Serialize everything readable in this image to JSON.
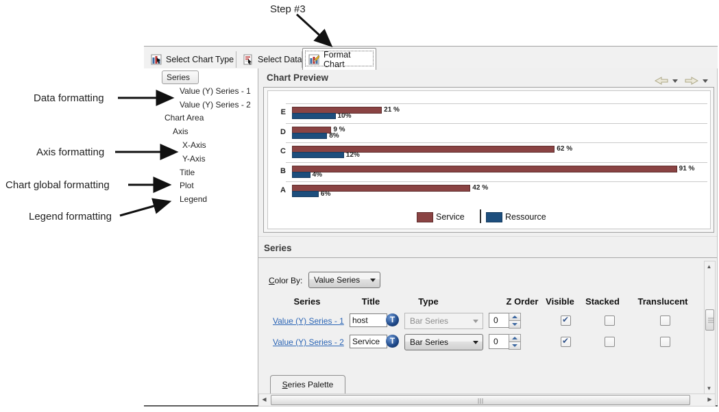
{
  "annotations": {
    "step_label": "Step #3",
    "data_formatting": "Data formatting",
    "axis_formatting": "Axis formatting",
    "chart_global_formatting": "Chart global formatting",
    "legend_formatting": "Legend formatting"
  },
  "tabs": [
    {
      "label": "Select Chart Type",
      "active": false
    },
    {
      "label": "Select Data",
      "active": false
    },
    {
      "label": "Format Chart",
      "active": true
    }
  ],
  "tree": {
    "selected": "Series",
    "items": [
      "Series",
      "Value (Y) Series - 1",
      "Value (Y) Series - 2",
      "Chart Area",
      "Axis",
      "X-Axis",
      "Y-Axis",
      "Title",
      "Plot",
      "Legend"
    ]
  },
  "chart_preview": {
    "title": "Chart Preview"
  },
  "chart_data": {
    "type": "bar",
    "orientation": "horizontal",
    "categories": [
      "E",
      "D",
      "C",
      "B",
      "A"
    ],
    "series": [
      {
        "name": "Service",
        "color": "#8a4343",
        "border": "#5e2d2d",
        "values": [
          21,
          9,
          62,
          91,
          42
        ],
        "labels": [
          "21 %",
          "9 %",
          "62 %",
          "91 %",
          "42 %"
        ]
      },
      {
        "name": "Ressource",
        "color": "#1d4e7d",
        "border": "#143a5e",
        "values": [
          10,
          8,
          12,
          4,
          6
        ],
        "labels": [
          "10%",
          "8%",
          "12%",
          "4%",
          "6%"
        ]
      }
    ],
    "xlim": [
      0,
      100
    ],
    "value_unit": "%",
    "grid": true,
    "legend_position": "bottom"
  },
  "series_section": {
    "title": "Series",
    "color_by_label": "Color By:",
    "color_by_value": "Value Series",
    "columns": [
      "Series",
      "Title",
      "Type",
      "Z Order",
      "Visible",
      "Stacked",
      "Translucent"
    ],
    "rows": [
      {
        "series": "Value (Y) Series - 1",
        "title": "host",
        "type": "Bar Series",
        "type_enabled": false,
        "z_order": "0",
        "visible": true,
        "stacked": false,
        "translucent": false
      },
      {
        "series": "Value (Y) Series - 2",
        "title": "Service",
        "type": "Bar Series",
        "type_enabled": true,
        "z_order": "0",
        "visible": true,
        "stacked": false,
        "translucent": false
      }
    ],
    "palette_tab_label": "Series Palette"
  }
}
